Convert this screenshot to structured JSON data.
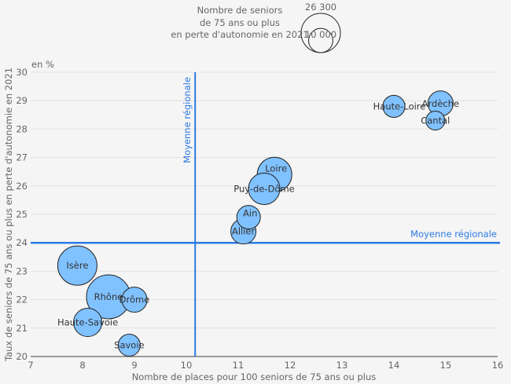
{
  "chart_data": {
    "type": "scatter",
    "subtype": "bubble",
    "title": "",
    "xlabel": "Nombre de places pour 100 seniors de 75 ans ou plus",
    "ylabel": "Taux de seniors de 75 ans ou plus en perte d'autonomie en 2021",
    "yunit": "en %",
    "xlim": [
      7,
      16
    ],
    "ylim": [
      20,
      30
    ],
    "xticks": [
      7,
      8,
      9,
      10,
      11,
      12,
      13,
      14,
      15,
      16
    ],
    "yticks": [
      20,
      21,
      22,
      23,
      24,
      25,
      26,
      27,
      28,
      29,
      30
    ],
    "grid": "horizontal",
    "size_legend": {
      "title_lines": [
        "Nombre de seniors",
        "de 75 ans ou plus",
        "en perte d'autonomie en 2021"
      ],
      "values": [
        26300,
        10000
      ],
      "labels": [
        "26 300",
        "10 000"
      ],
      "placement": "top-center"
    },
    "reference_lines": [
      {
        "orientation": "vertical",
        "value": 10.17,
        "label": "Moyenne régionale"
      },
      {
        "orientation": "horizontal",
        "value": 24.0,
        "label": "Moyenne régionale"
      }
    ],
    "colors": {
      "bubble_fill": "#80c1ff",
      "bubble_stroke": "#222222",
      "reference_line": "#2a7ae2",
      "grid": "#e2e2e2",
      "axis": "#666666",
      "background": "#f5f5f5"
    },
    "points": [
      {
        "name": "Haute-Loire",
        "x": 14.0,
        "y": 28.8,
        "size": 8300,
        "label_pos": "left"
      },
      {
        "name": "Ardèche",
        "x": 14.9,
        "y": 28.9,
        "size": 10800,
        "label_pos": "center"
      },
      {
        "name": "Cantal",
        "x": 14.8,
        "y": 28.3,
        "size": 6100,
        "label_pos": "center"
      },
      {
        "name": "Loire",
        "x": 11.7,
        "y": 26.4,
        "size": 20400,
        "label_pos": "above-center"
      },
      {
        "name": "Puy-de-Dôme",
        "x": 11.5,
        "y": 25.9,
        "size": 16900,
        "label_pos": "center"
      },
      {
        "name": "Ain",
        "x": 11.2,
        "y": 24.9,
        "size": 9500,
        "label_pos": "above-center"
      },
      {
        "name": "Allier",
        "x": 11.1,
        "y": 24.4,
        "size": 10800,
        "label_pos": "center"
      },
      {
        "name": "Isère",
        "x": 7.9,
        "y": 23.2,
        "size": 26300,
        "label_pos": "center"
      },
      {
        "name": "Rhône",
        "x": 8.5,
        "y": 22.1,
        "size": 33000,
        "label_pos": "center"
      },
      {
        "name": "Drôme",
        "x": 9.0,
        "y": 22.0,
        "size": 10800,
        "label_pos": "center"
      },
      {
        "name": "Haute-Savoie",
        "x": 8.1,
        "y": 21.2,
        "size": 13700,
        "label_pos": "center"
      },
      {
        "name": "Savoie",
        "x": 8.9,
        "y": 20.4,
        "size": 8300,
        "label_pos": "center"
      }
    ]
  }
}
